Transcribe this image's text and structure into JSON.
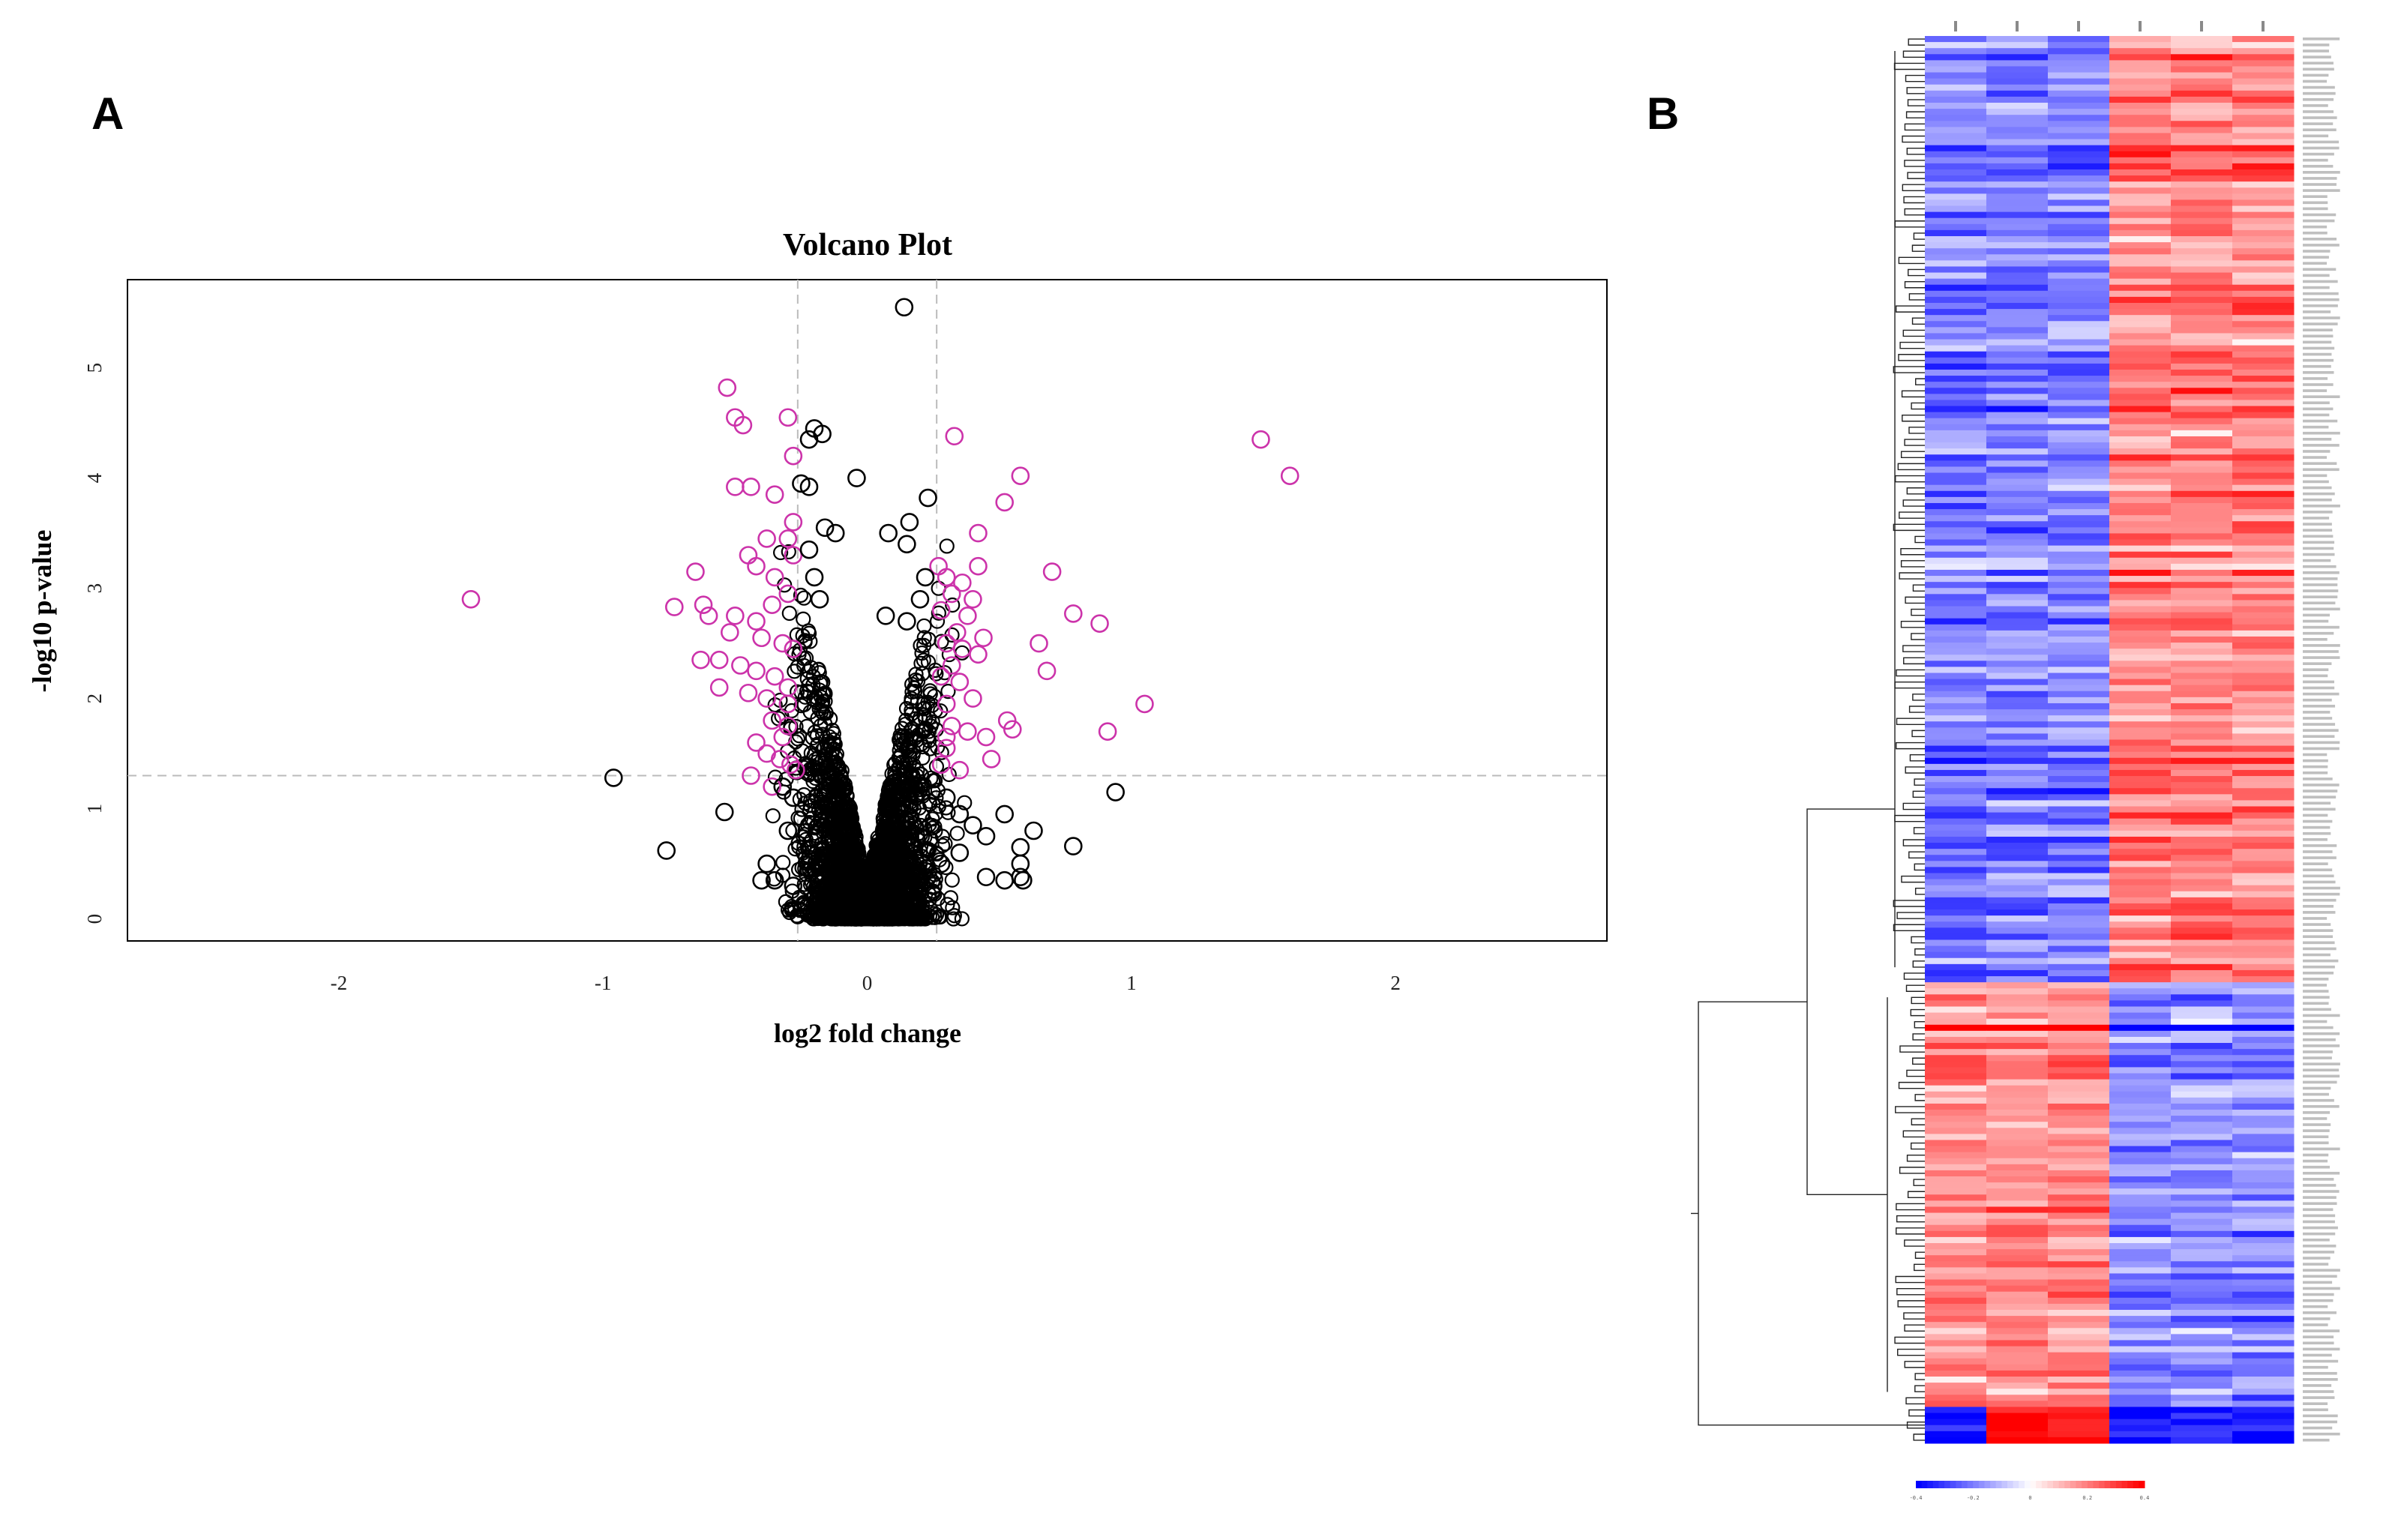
{
  "panels": {
    "a_label": "A",
    "b_label": "B"
  },
  "colors": {
    "significant": "#cc33aa",
    "nonsignificant": "#000000",
    "threshold_line": "#bbbbbb",
    "heat_low": "#0000ff",
    "heat_mid": "#ffffff",
    "heat_high": "#ff0000"
  },
  "chart_data": [
    {
      "type": "scatter",
      "title": "Volcano Plot",
      "xlabel": "log2 fold change",
      "ylabel": "-log10 p-value",
      "xlim": [
        -2.8,
        2.8
      ],
      "ylim": [
        -0.2,
        5.8
      ],
      "x_ticks": [
        -2,
        -1,
        0,
        1,
        2
      ],
      "x_tick_labels": [
        "-2",
        "-1",
        "0",
        "1",
        "2"
      ],
      "y_ticks": [
        0,
        1,
        2,
        3,
        4,
        5
      ],
      "y_tick_labels": [
        "0",
        "1",
        "2",
        "3",
        "4",
        "5"
      ],
      "thresholds": {
        "fold_change": [
          -0.263,
          0.263
        ],
        "p_value_line": 1.3
      },
      "series": [
        {
          "name": "significant",
          "points": [
            [
              -1.5,
              2.9
            ],
            [
              -0.53,
              4.82
            ],
            [
              -0.5,
              4.55
            ],
            [
              -0.47,
              4.48
            ],
            [
              -0.3,
              4.55
            ],
            [
              -0.28,
              4.2
            ],
            [
              -0.5,
              3.92
            ],
            [
              -0.44,
              3.92
            ],
            [
              -0.35,
              3.85
            ],
            [
              -0.28,
              3.6
            ],
            [
              -0.3,
              3.45
            ],
            [
              -0.38,
              3.45
            ],
            [
              -0.45,
              3.3
            ],
            [
              -0.42,
              3.2
            ],
            [
              -0.35,
              3.1
            ],
            [
              -0.65,
              3.15
            ],
            [
              -0.62,
              2.85
            ],
            [
              -0.73,
              2.83
            ],
            [
              -0.6,
              2.75
            ],
            [
              -0.5,
              2.75
            ],
            [
              -0.42,
              2.7
            ],
            [
              -0.36,
              2.85
            ],
            [
              -0.3,
              2.95
            ],
            [
              -0.28,
              3.3
            ],
            [
              -0.52,
              2.6
            ],
            [
              -0.4,
              2.55
            ],
            [
              -0.32,
              2.5
            ],
            [
              -0.28,
              2.45
            ],
            [
              -0.63,
              2.35
            ],
            [
              -0.56,
              2.35
            ],
            [
              -0.48,
              2.3
            ],
            [
              -0.42,
              2.25
            ],
            [
              -0.35,
              2.2
            ],
            [
              -0.3,
              2.1
            ],
            [
              -0.56,
              2.1
            ],
            [
              -0.45,
              2.05
            ],
            [
              -0.38,
              2.0
            ],
            [
              -0.3,
              1.95
            ],
            [
              -0.36,
              1.8
            ],
            [
              -0.3,
              1.75
            ],
            [
              -0.42,
              1.6
            ],
            [
              -0.38,
              1.5
            ],
            [
              -0.33,
              1.45
            ],
            [
              -0.29,
              1.4
            ],
            [
              -0.44,
              1.3
            ],
            [
              -0.36,
              1.2
            ],
            [
              -0.27,
              1.35
            ],
            [
              -0.32,
              1.65
            ],
            [
              0.33,
              4.38
            ],
            [
              0.58,
              4.02
            ],
            [
              0.52,
              3.78
            ],
            [
              0.42,
              3.5
            ],
            [
              0.42,
              3.2
            ],
            [
              0.27,
              3.2
            ],
            [
              0.3,
              3.1
            ],
            [
              0.36,
              3.05
            ],
            [
              0.7,
              3.15
            ],
            [
              0.32,
              2.95
            ],
            [
              0.4,
              2.9
            ],
            [
              0.28,
              2.8
            ],
            [
              0.38,
              2.75
            ],
            [
              0.34,
              2.6
            ],
            [
              0.44,
              2.55
            ],
            [
              0.3,
              2.5
            ],
            [
              0.36,
              2.45
            ],
            [
              0.42,
              2.4
            ],
            [
              0.65,
              2.5
            ],
            [
              0.78,
              2.77
            ],
            [
              0.88,
              2.68
            ],
            [
              0.68,
              2.25
            ],
            [
              0.32,
              2.3
            ],
            [
              0.28,
              2.2
            ],
            [
              0.35,
              2.15
            ],
            [
              0.4,
              2.0
            ],
            [
              0.3,
              1.95
            ],
            [
              0.32,
              1.75
            ],
            [
              0.38,
              1.7
            ],
            [
              0.3,
              1.65
            ],
            [
              0.45,
              1.65
            ],
            [
              0.53,
              1.8
            ],
            [
              0.55,
              1.72
            ],
            [
              0.47,
              1.45
            ],
            [
              0.35,
              1.35
            ],
            [
              0.28,
              1.4
            ],
            [
              0.3,
              1.55
            ],
            [
              1.05,
              1.95
            ],
            [
              0.91,
              1.7
            ],
            [
              1.49,
              4.35
            ],
            [
              1.6,
              4.02
            ]
          ]
        },
        {
          "name": "nonsignificant",
          "points": [
            [
              0.14,
              5.55
            ],
            [
              -0.2,
              4.45
            ],
            [
              -0.22,
              4.35
            ],
            [
              -0.17,
              4.4
            ],
            [
              -0.04,
              4.0
            ],
            [
              -0.22,
              3.92
            ],
            [
              -0.25,
              3.95
            ],
            [
              0.23,
              3.82
            ],
            [
              0.16,
              3.6
            ],
            [
              0.08,
              3.5
            ],
            [
              0.15,
              3.4
            ],
            [
              -0.12,
              3.5
            ],
            [
              -0.16,
              3.55
            ],
            [
              -0.22,
              3.35
            ],
            [
              -0.2,
              3.1
            ],
            [
              -0.18,
              2.9
            ],
            [
              0.22,
              3.1
            ],
            [
              0.2,
              2.9
            ],
            [
              0.15,
              2.7
            ],
            [
              0.07,
              2.75
            ],
            [
              -0.96,
              1.28
            ],
            [
              -0.54,
              0.97
            ],
            [
              -0.76,
              0.62
            ],
            [
              0.94,
              1.15
            ],
            [
              0.78,
              0.66
            ],
            [
              0.63,
              0.8
            ],
            [
              0.58,
              0.65
            ],
            [
              0.58,
              0.5
            ],
            [
              0.58,
              0.38
            ],
            [
              0.59,
              0.35
            ],
            [
              0.52,
              0.35
            ],
            [
              0.45,
              0.38
            ],
            [
              0.52,
              0.95
            ],
            [
              -0.35,
              0.35
            ],
            [
              -0.4,
              0.35
            ],
            [
              -0.38,
              0.5
            ],
            [
              -0.32,
              1.2
            ],
            [
              -0.28,
              1.1
            ],
            [
              -0.3,
              0.8
            ],
            [
              0.3,
              1.1
            ],
            [
              0.35,
              0.95
            ],
            [
              0.4,
              0.85
            ],
            [
              0.45,
              0.75
            ],
            [
              0.35,
              0.6
            ],
            [
              0.28,
              0.5
            ],
            [
              -0.28,
              0.3
            ],
            [
              0.25,
              0.3
            ],
            [
              0.2,
              1.3
            ]
          ],
          "dense_cloud": "symmetric V-shaped cloud of many non-significant proteins centered at 0, spanning roughly -0.35 to 0.35 and -log10 p from 0 to 3.5"
        }
      ]
    },
    {
      "type": "heatmap",
      "rows": 232,
      "columns": 6,
      "color_scale": [
        "-0.4",
        "-0.2",
        "0",
        "0.2",
        "0.4"
      ],
      "cluster_blocks": [
        {
          "rows": "0-155",
          "pattern": "blue in columns 1-3, red in columns 4-6"
        },
        {
          "rows": "156-225",
          "pattern": "red in columns 1-3, blue in columns 4-6"
        },
        {
          "rows": "226-231",
          "pattern": "outlier cluster, strong red / blue"
        }
      ]
    }
  ]
}
